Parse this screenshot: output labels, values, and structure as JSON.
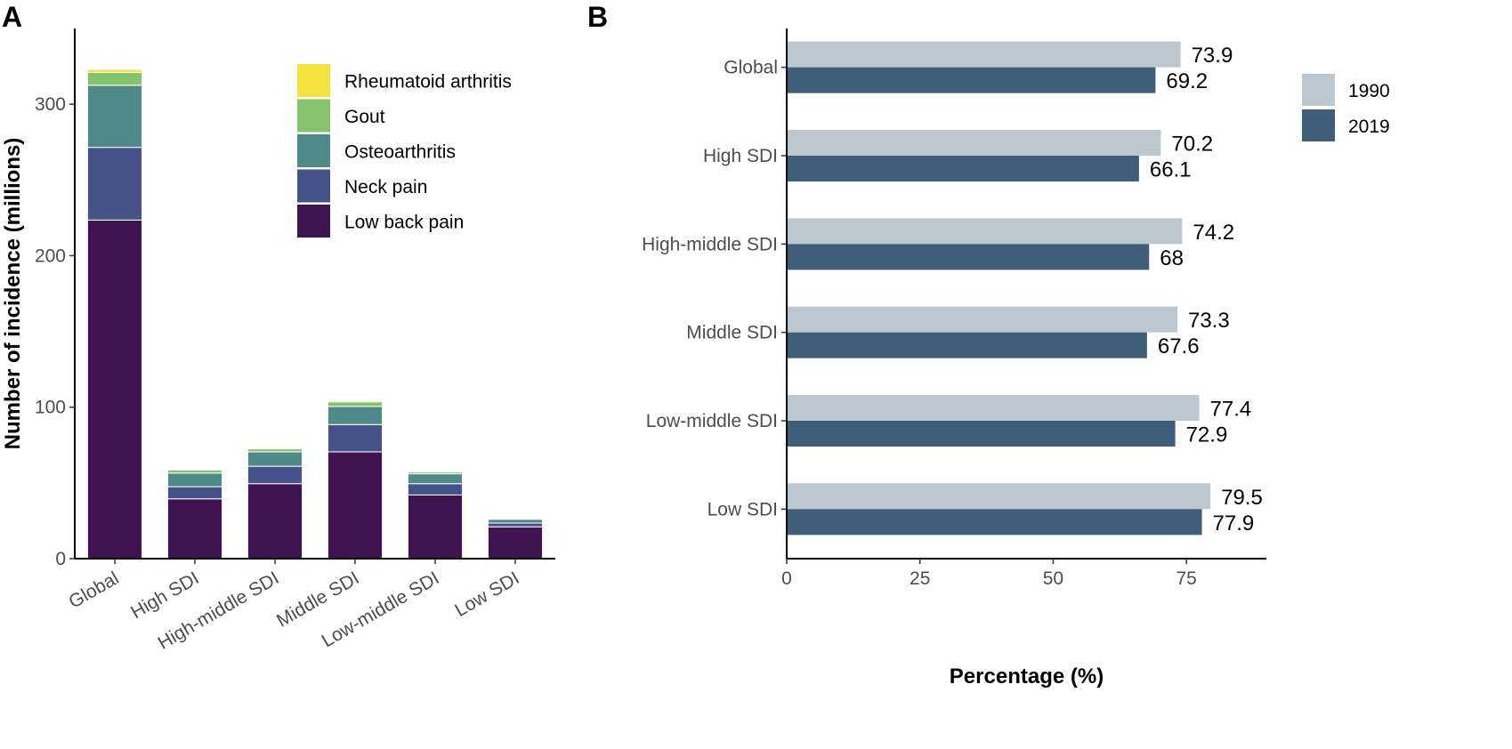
{
  "panels": {
    "a_label": "A",
    "b_label": "B"
  },
  "chart_data": [
    {
      "type": "bar",
      "stacked": true,
      "panel": "A",
      "ylabel": "Number of incidence (millions)",
      "xlabel": "",
      "ylim": [
        0,
        350
      ],
      "yticks": [
        0,
        100,
        200,
        300
      ],
      "categories": [
        "Global",
        "High SDI",
        "High-middle SDI",
        "Middle SDI",
        "Low-middle SDI",
        "Low SDI"
      ],
      "series": [
        {
          "name": "Low back pain",
          "color": "#3f1451",
          "values": [
            223.5,
            39.5,
            49.5,
            70.5,
            42.0,
            21.0
          ]
        },
        {
          "name": "Neck pain",
          "color": "#46528a",
          "values": [
            48.0,
            8.0,
            11.5,
            18.0,
            7.5,
            2.5
          ]
        },
        {
          "name": "Osteoarthritis",
          "color": "#4f8a88",
          "values": [
            41.0,
            9.0,
            9.5,
            12.0,
            6.5,
            2.5
          ]
        },
        {
          "name": "Gout",
          "color": "#85c46d",
          "values": [
            8.5,
            2.0,
            2.0,
            3.0,
            1.2,
            0.6
          ]
        },
        {
          "name": "Rheumatoid arthritis",
          "color": "#f4e33e",
          "values": [
            2.0,
            0.5,
            0.5,
            0.7,
            0.5,
            0.3
          ]
        }
      ],
      "legend": {
        "position": "top-right",
        "order": [
          "Rheumatoid arthritis",
          "Gout",
          "Osteoarthritis",
          "Neck pain",
          "Low back pain"
        ]
      },
      "grid": false
    },
    {
      "type": "bar",
      "orientation": "horizontal",
      "panel": "B",
      "xlabel": "Percentage (%)",
      "ylabel": "",
      "xlim": [
        0,
        90
      ],
      "xticks": [
        0,
        25,
        50,
        75
      ],
      "categories": [
        "Global",
        "High SDI",
        "High-middle SDI",
        "Middle SDI",
        "Low-middle SDI",
        "Low SDI"
      ],
      "series": [
        {
          "name": "1990",
          "color": "#bdc7d0",
          "values": [
            73.9,
            70.2,
            74.2,
            73.3,
            77.4,
            79.5
          ],
          "labels": [
            "73.9",
            "70.2",
            "74.2",
            "73.3",
            "77.4",
            "79.5"
          ]
        },
        {
          "name": "2019",
          "color": "#3e5e7a",
          "values": [
            69.2,
            66.1,
            68,
            67.6,
            72.9,
            77.9
          ],
          "labels": [
            "69.2",
            "66.1",
            "68",
            "67.6",
            "72.9",
            "77.9"
          ]
        }
      ],
      "legend": {
        "position": "right",
        "order": [
          "1990",
          "2019"
        ]
      },
      "grid": false
    }
  ]
}
